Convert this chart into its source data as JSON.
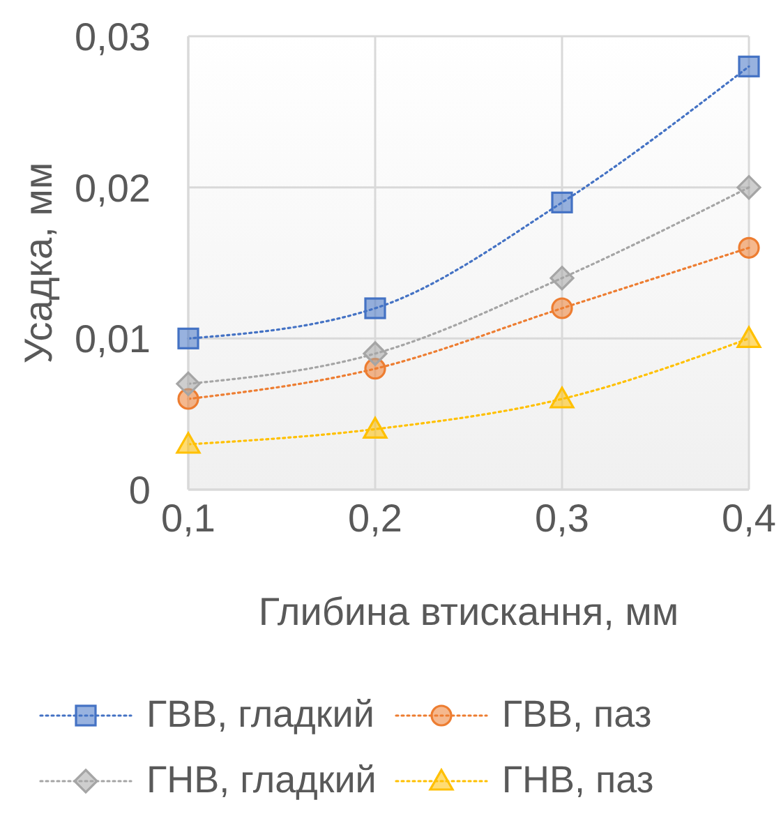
{
  "chart_data": {
    "type": "line",
    "xlabel": "Глибина втискання, мм",
    "ylabel": "Усадка, мм",
    "x": [
      0.1,
      0.2,
      0.3,
      0.4
    ],
    "series": [
      {
        "name": "ГВВ, гладкий",
        "color": "#4472c4",
        "marker": "square",
        "values": [
          0.01,
          0.012,
          0.019,
          0.028
        ]
      },
      {
        "name": "ГВВ, паз",
        "color": "#ed7d31",
        "marker": "circle",
        "values": [
          0.006,
          0.008,
          0.012,
          0.016
        ]
      },
      {
        "name": "ГНВ, гладкий",
        "color": "#a5a5a5",
        "marker": "diamond",
        "values": [
          0.007,
          0.009,
          0.014,
          0.02
        ]
      },
      {
        "name": "ГНВ, паз",
        "color": "#ffc000",
        "marker": "triangle",
        "values": [
          0.003,
          0.004,
          0.006,
          0.01
        ]
      }
    ],
    "xlim": [
      0.1,
      0.4
    ],
    "xticks": [
      {
        "value": 0.1,
        "label": "0,1"
      },
      {
        "value": 0.2,
        "label": "0,2"
      },
      {
        "value": 0.3,
        "label": "0,3"
      },
      {
        "value": 0.4,
        "label": "0,4"
      }
    ],
    "ylim": [
      0,
      0.03
    ],
    "yticks": [
      0,
      {
        "value": 0.01,
        "label": "0,01"
      },
      {
        "value": 0.02,
        "label": "0,02"
      },
      {
        "value": 0.03,
        "label": "0,03"
      }
    ],
    "grid": true,
    "legend": "bottom",
    "line_style": "dotted"
  }
}
